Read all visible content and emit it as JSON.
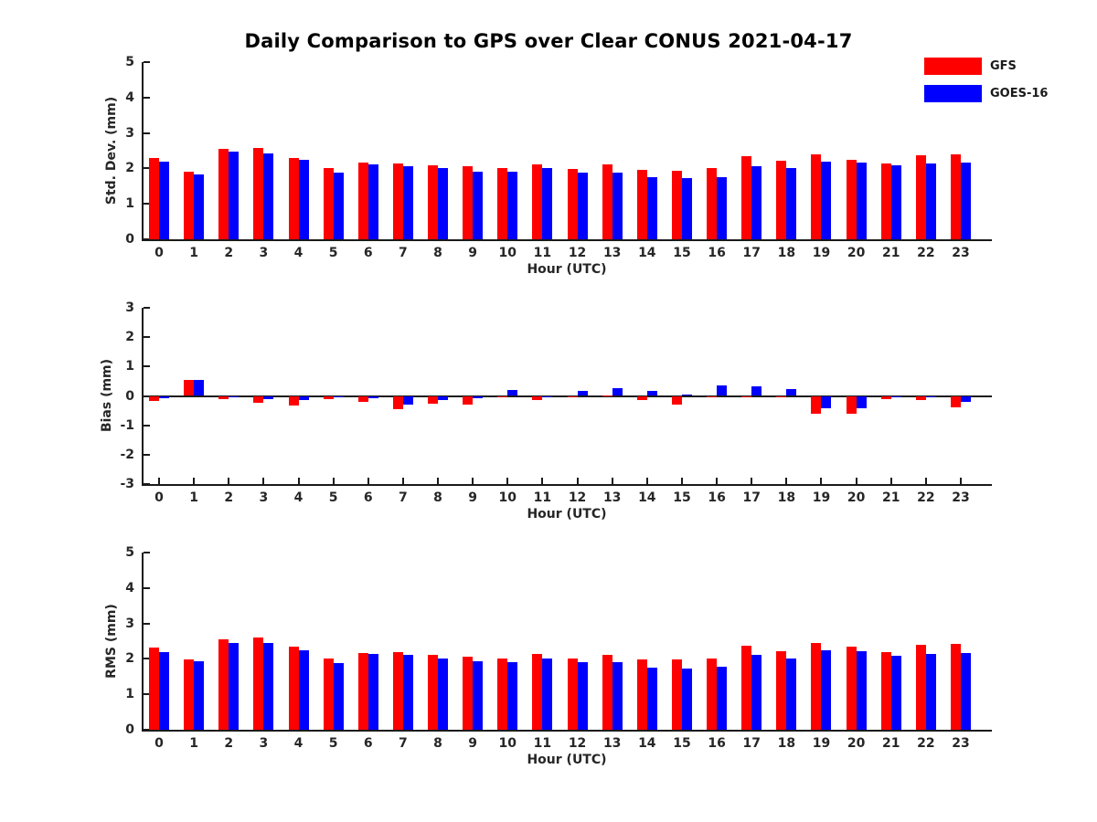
{
  "figure": {
    "title": "Daily Comparison to GPS over Clear CONUS 2021-04-17",
    "background": "#ffffff"
  },
  "legend": {
    "items": [
      {
        "label": "GFS",
        "color": "#ff0000"
      },
      {
        "label": "GOES-16",
        "color": "#0000ff"
      }
    ]
  },
  "chart_data": [
    {
      "type": "bar",
      "panel": "std-dev",
      "ylabel": "Std. Dev. (mm)",
      "xlabel": "Hour (UTC)",
      "ylim": [
        0,
        5
      ],
      "yticks": [
        0,
        1,
        2,
        3,
        4,
        5
      ],
      "categories": [
        "0",
        "1",
        "2",
        "3",
        "4",
        "5",
        "6",
        "7",
        "8",
        "9",
        "10",
        "11",
        "12",
        "13",
        "14",
        "15",
        "16",
        "17",
        "18",
        "19",
        "20",
        "21",
        "22",
        "23"
      ],
      "legend_position": "top-right-of-figure",
      "grid": false,
      "series": [
        {
          "name": "GFS",
          "color": "#ff0000",
          "values": [
            2.3,
            1.9,
            2.55,
            2.58,
            2.3,
            2.0,
            2.17,
            2.15,
            2.1,
            2.05,
            2.0,
            2.12,
            1.98,
            2.12,
            1.97,
            1.93,
            2.0,
            2.35,
            2.22,
            2.4,
            2.25,
            2.15,
            2.38,
            2.4
          ]
        },
        {
          "name": "GOES-16",
          "color": "#0000ff",
          "values": [
            2.2,
            1.84,
            2.48,
            2.43,
            2.25,
            1.88,
            2.12,
            2.07,
            2.02,
            1.92,
            1.9,
            2.02,
            1.88,
            1.89,
            1.75,
            1.73,
            1.74,
            2.07,
            2.0,
            2.2,
            2.17,
            2.1,
            2.15,
            2.17
          ]
        }
      ]
    },
    {
      "type": "bar",
      "panel": "bias",
      "ylabel": "Bias (mm)",
      "xlabel": "Hour (UTC)",
      "ylim": [
        -3,
        3
      ],
      "yticks": [
        3,
        2,
        1,
        0,
        -1,
        -2,
        -3
      ],
      "categories": [
        "0",
        "1",
        "2",
        "3",
        "4",
        "5",
        "6",
        "7",
        "8",
        "9",
        "10",
        "11",
        "12",
        "13",
        "14",
        "15",
        "16",
        "17",
        "18",
        "19",
        "20",
        "21",
        "22",
        "23"
      ],
      "grid": false,
      "zero_line": true,
      "series": [
        {
          "name": "GFS",
          "color": "#ff0000",
          "values": [
            -0.18,
            0.55,
            -0.12,
            -0.22,
            -0.32,
            -0.11,
            -0.2,
            -0.44,
            -0.25,
            -0.28,
            -0.04,
            -0.15,
            -0.02,
            0.02,
            -0.13,
            -0.3,
            -0.03,
            -0.03,
            -0.05,
            -0.62,
            -0.6,
            -0.1,
            -0.15,
            -0.38
          ]
        },
        {
          "name": "GOES-16",
          "color": "#0000ff",
          "values": [
            -0.07,
            0.55,
            -0.02,
            -0.12,
            -0.13,
            -0.04,
            -0.08,
            -0.28,
            -0.15,
            -0.09,
            0.19,
            -0.02,
            0.17,
            0.27,
            0.17,
            0.06,
            0.37,
            0.33,
            0.23,
            -0.42,
            -0.43,
            -0.02,
            -0.03,
            -0.2
          ]
        }
      ]
    },
    {
      "type": "bar",
      "panel": "rms",
      "ylabel": "RMS (mm)",
      "xlabel": "Hour (UTC)",
      "ylim": [
        0,
        5
      ],
      "yticks": [
        0,
        1,
        2,
        3,
        4,
        5
      ],
      "categories": [
        "0",
        "1",
        "2",
        "3",
        "4",
        "5",
        "6",
        "7",
        "8",
        "9",
        "10",
        "11",
        "12",
        "13",
        "14",
        "15",
        "16",
        "17",
        "18",
        "19",
        "20",
        "21",
        "22",
        "23"
      ],
      "grid": false,
      "series": [
        {
          "name": "GFS",
          "color": "#ff0000",
          "values": [
            2.32,
            1.99,
            2.54,
            2.6,
            2.34,
            2.01,
            2.17,
            2.18,
            2.11,
            2.06,
            2.01,
            2.15,
            2.0,
            2.11,
            1.98,
            1.98,
            2.01,
            2.38,
            2.21,
            2.46,
            2.34,
            2.18,
            2.39,
            2.41
          ]
        },
        {
          "name": "GOES-16",
          "color": "#0000ff",
          "values": [
            2.2,
            1.93,
            2.45,
            2.44,
            2.23,
            1.88,
            2.13,
            2.11,
            2.02,
            1.94,
            1.9,
            2.0,
            1.9,
            1.92,
            1.74,
            1.72,
            1.77,
            2.11,
            2.01,
            2.24,
            2.21,
            2.08,
            2.15,
            2.17
          ]
        }
      ]
    }
  ]
}
